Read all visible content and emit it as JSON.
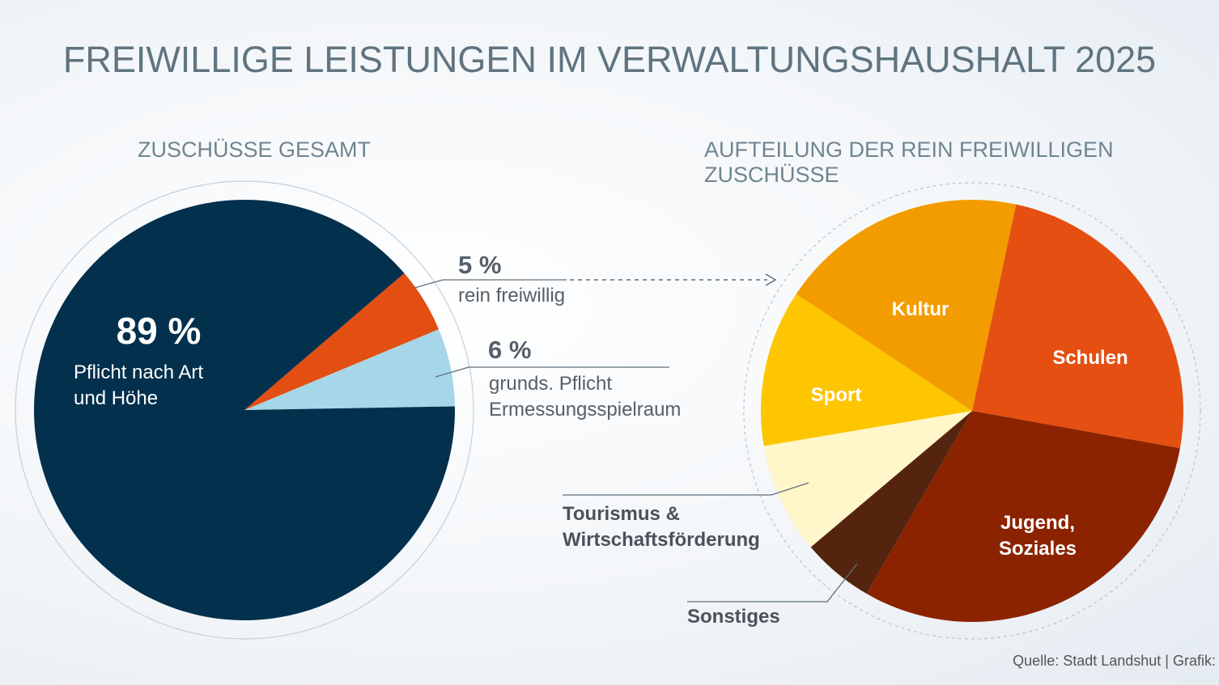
{
  "title": "FREIWILLIGE LEISTUNGEN IM VERWALTUNGSHAUSHALT 2025",
  "source": "Quelle: Stadt Landshut | Grafik:",
  "chart_data": [
    {
      "type": "pie",
      "title": "ZUSCHÜSSE GESAMT",
      "slices": [
        {
          "label": "Pflicht nach Art und Höhe",
          "label_lines": [
            "Pflicht nach Art",
            "und Höhe"
          ],
          "percent_text": "89 %",
          "value": 89,
          "color": "#03304d"
        },
        {
          "label": "rein freiwillig",
          "label_lines": [
            "rein freiwillig"
          ],
          "percent_text": "5 %",
          "value": 5,
          "color": "#e34e12"
        },
        {
          "label": "grunds. Pflicht Ermessungsspielraum",
          "label_lines": [
            "grunds. Pflicht",
            "Ermessungsspielraum"
          ],
          "percent_text": "6 %",
          "value": 6,
          "color": "#a6d7e8"
        }
      ]
    },
    {
      "type": "pie",
      "title": "AUFTEILUNG DER REIN FREIWILLIGEN ZUSCHÜSSE",
      "slices": [
        {
          "label": "Schulen",
          "label_lines": [
            "Schulen"
          ],
          "value": 24.5,
          "color": "#e54f12"
        },
        {
          "label": "Jugend, Soziales",
          "label_lines": [
            "Jugend,",
            "Soziales"
          ],
          "value": 30.5,
          "color": "#8b2300"
        },
        {
          "label": "Sonstiges",
          "label_lines": [
            "Sonstiges"
          ],
          "value": 5.5,
          "color": "#55240f"
        },
        {
          "label": "Tourismus & Wirtschaftsförderung",
          "label_lines": [
            "Tourismus &",
            "Wirtschaftsförderung"
          ],
          "value": 8.5,
          "color": "#fff6c9"
        },
        {
          "label": "Sport",
          "label_lines": [
            "Sport"
          ],
          "value": 12,
          "color": "#fdc600"
        },
        {
          "label": "Kultur",
          "label_lines": [
            "Kultur"
          ],
          "value": 19,
          "color": "#f39c00"
        }
      ]
    }
  ]
}
